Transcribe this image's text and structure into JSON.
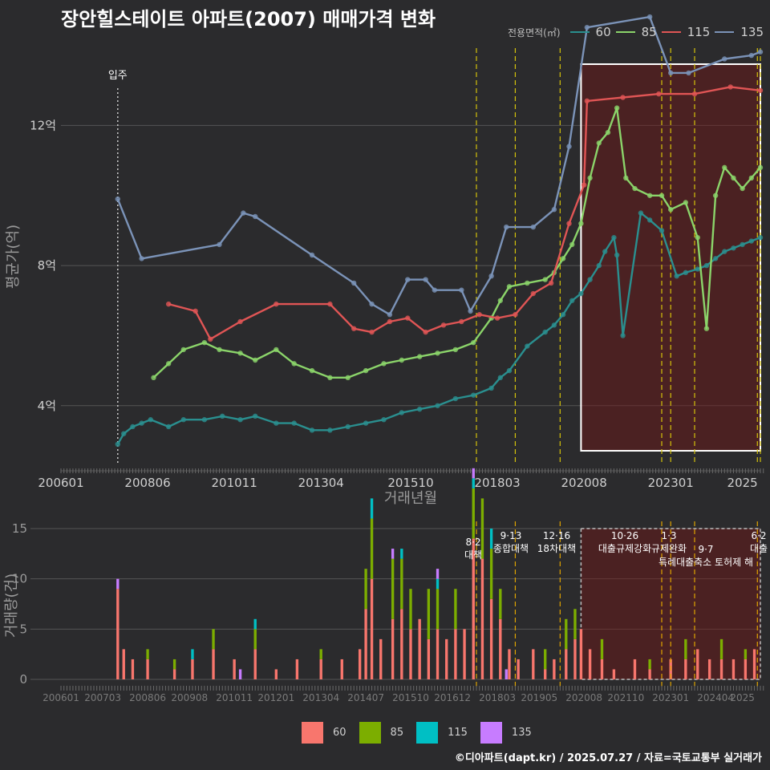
{
  "title": "장안힐스테이트 아파트(2007) 매매가격 변화",
  "footer": "©디아파트(dapt.kr) / 2025.07.27 / 자료=국토교통부 실거래가",
  "legend": {
    "title": "전용면적(㎡)",
    "items": [
      {
        "label": "60",
        "line_color": "#2a8f8f",
        "bar_color": "#f8766d"
      },
      {
        "label": "85",
        "line_color": "#8bd46a",
        "bar_color": "#7cae00"
      },
      {
        "label": "115",
        "line_color": "#e05555",
        "bar_color": "#00bfc4"
      },
      {
        "label": "135",
        "line_color": "#7b93b8",
        "bar_color": "#c77cff"
      }
    ]
  },
  "chart_data": [
    {
      "type": "line",
      "title": "장안힐스테이트 아파트(2007) 매매가격 변화",
      "xlabel": "거래년월",
      "ylabel": "평균가(억)",
      "x_ticks": [
        "200601",
        "200806",
        "201011",
        "201304",
        "201510",
        "201803",
        "202008",
        "202301",
        "2025"
      ],
      "y_ticks": [
        "4억",
        "8억",
        "12억"
      ],
      "y_tick_values": [
        4,
        8,
        12
      ],
      "ylim": [
        2.3,
        14.3
      ],
      "xlim": [
        "2006-01",
        "2025-07"
      ],
      "move_in_label": "입주",
      "move_in_x": "2007-08",
      "policy_lines": [
        "2017-08",
        "2018-09",
        "2019-12",
        "2022-10",
        "2023-01",
        "2023-09",
        "2025-06",
        "2025-07"
      ],
      "highlight_x_range": [
        "2020-07",
        "2025-07"
      ],
      "series": [
        {
          "name": "60",
          "color": "#2a8f8f",
          "x": [
            "2007-08",
            "2007-10",
            "2008-01",
            "2008-04",
            "2008-07",
            "2009-01",
            "2009-06",
            "2010-01",
            "2010-07",
            "2011-01",
            "2011-06",
            "2012-01",
            "2012-07",
            "2013-01",
            "2013-07",
            "2014-01",
            "2014-07",
            "2015-01",
            "2015-07",
            "2016-01",
            "2016-07",
            "2017-01",
            "2017-07",
            "2018-01",
            "2018-04",
            "2018-07",
            "2019-01",
            "2019-07",
            "2019-10",
            "2020-01",
            "2020-04",
            "2020-07",
            "2020-10",
            "2021-01",
            "2021-03",
            "2021-06",
            "2021-07",
            "2021-09",
            "2022-03",
            "2022-06",
            "2022-10",
            "2023-03",
            "2023-06",
            "2023-10",
            "2024-01",
            "2024-04",
            "2024-07",
            "2024-10",
            "2025-01",
            "2025-04",
            "2025-07"
          ],
          "y": [
            2.9,
            3.2,
            3.4,
            3.5,
            3.6,
            3.4,
            3.6,
            3.6,
            3.7,
            3.6,
            3.7,
            3.5,
            3.5,
            3.3,
            3.3,
            3.4,
            3.5,
            3.6,
            3.8,
            3.9,
            4.0,
            4.2,
            4.3,
            4.5,
            4.8,
            5.0,
            5.7,
            6.1,
            6.3,
            6.6,
            7.0,
            7.2,
            7.6,
            8.0,
            8.4,
            8.8,
            8.3,
            6.0,
            9.5,
            9.3,
            9.0,
            7.7,
            7.8,
            7.9,
            8.0,
            8.2,
            8.4,
            8.5,
            8.6,
            8.7,
            8.8
          ]
        },
        {
          "name": "85",
          "color": "#8bd46a",
          "x": [
            "2008-08",
            "2009-01",
            "2009-06",
            "2010-01",
            "2010-06",
            "2011-01",
            "2011-06",
            "2012-01",
            "2012-07",
            "2013-01",
            "2013-07",
            "2014-01",
            "2014-07",
            "2015-01",
            "2015-07",
            "2016-01",
            "2016-07",
            "2017-01",
            "2017-07",
            "2018-01",
            "2018-04",
            "2018-07",
            "2019-01",
            "2019-07",
            "2019-10",
            "2020-01",
            "2020-04",
            "2020-07",
            "2020-10",
            "2021-01",
            "2021-04",
            "2021-07",
            "2021-10",
            "2022-01",
            "2022-06",
            "2022-10",
            "2023-01",
            "2023-06",
            "2023-10",
            "2024-01",
            "2024-04",
            "2024-07",
            "2024-10",
            "2025-01",
            "2025-04",
            "2025-07"
          ],
          "y": [
            4.8,
            5.2,
            5.6,
            5.8,
            5.6,
            5.5,
            5.3,
            5.6,
            5.2,
            5.0,
            4.8,
            4.8,
            5.0,
            5.2,
            5.3,
            5.4,
            5.5,
            5.6,
            5.8,
            6.5,
            7.0,
            7.4,
            7.5,
            7.6,
            7.8,
            8.2,
            8.6,
            9.2,
            10.5,
            11.5,
            11.8,
            12.5,
            10.5,
            10.2,
            10.0,
            10.0,
            9.6,
            9.8,
            8.8,
            6.2,
            10.0,
            10.8,
            10.5,
            10.2,
            10.5,
            10.8
          ]
        },
        {
          "name": "115",
          "color": "#e05555",
          "x": [
            "2009-01",
            "2009-10",
            "2010-03",
            "2011-01",
            "2012-01",
            "2013-07",
            "2014-03",
            "2014-09",
            "2015-03",
            "2015-09",
            "2016-03",
            "2016-09",
            "2017-03",
            "2017-09",
            "2018-03",
            "2018-09",
            "2019-03",
            "2019-09",
            "2020-03",
            "2020-08",
            "2020-09",
            "2021-09",
            "2022-09",
            "2023-09",
            "2024-09",
            "2025-07"
          ],
          "y": [
            6.9,
            6.7,
            5.9,
            6.4,
            6.9,
            6.9,
            6.2,
            6.1,
            6.4,
            6.5,
            6.1,
            6.3,
            6.4,
            6.6,
            6.5,
            6.6,
            7.2,
            7.5,
            9.2,
            10.3,
            12.7,
            12.8,
            12.9,
            12.9,
            13.1,
            13.0
          ]
        },
        {
          "name": "135",
          "color": "#7b93b8",
          "x": [
            "2007-08",
            "2008-04",
            "2010-06",
            "2011-02",
            "2011-06",
            "2013-01",
            "2014-03",
            "2014-09",
            "2015-03",
            "2015-09",
            "2016-03",
            "2016-06",
            "2017-03",
            "2017-06",
            "2018-01",
            "2018-06",
            "2019-03",
            "2019-10",
            "2020-03",
            "2020-09",
            "2022-06",
            "2023-01",
            "2023-07",
            "2024-07",
            "2025-04",
            "2025-07"
          ],
          "y": [
            9.9,
            8.2,
            8.6,
            9.5,
            9.4,
            8.3,
            7.5,
            6.9,
            6.6,
            7.6,
            7.6,
            7.3,
            7.3,
            6.7,
            7.7,
            9.1,
            9.1,
            9.6,
            11.4,
            14.8,
            15.1,
            13.5,
            13.5,
            13.9,
            14.0,
            14.1
          ]
        }
      ]
    },
    {
      "type": "bar",
      "xlabel": "",
      "ylabel": "거래량(건)",
      "x_ticks": [
        "200601",
        "200703",
        "200806",
        "200908",
        "201011",
        "201201",
        "201304",
        "201407",
        "201510",
        "201612",
        "201803",
        "201905",
        "202008",
        "202110",
        "202301",
        "202404",
        "2025"
      ],
      "y_ticks": [
        "0",
        "5",
        "10",
        "15"
      ],
      "y_tick_values": [
        0,
        5,
        10,
        15
      ],
      "ylim": [
        0,
        15
      ],
      "highlight_x_range": [
        "2020-07",
        "2025-07"
      ],
      "annotations": [
        {
          "x": "2017-08",
          "date": "8·2",
          "text": "대책"
        },
        {
          "x": "2018-09",
          "date": "9·13",
          "text": "종합대책"
        },
        {
          "x": "2019-12",
          "date": "12·16",
          "text": "18차대책"
        },
        {
          "x": "2022-10",
          "date": "10·26",
          "text": "대출규제강화"
        },
        {
          "x": "2023-01",
          "date": "1·3",
          "text": "규제완화"
        },
        {
          "x": "2023-09",
          "date": "9·7",
          "text": "특례대출축소 토허제 해"
        },
        {
          "x": "2025-06",
          "date": "6·2",
          "text": "대출"
        }
      ],
      "series": [
        {
          "name": "60",
          "color": "#f8766d",
          "x": [
            "2007-08",
            "2007-10",
            "2008-01",
            "2008-06",
            "2009-03",
            "2009-09",
            "2010-04",
            "2010-11",
            "2011-06",
            "2012-01",
            "2012-08",
            "2013-04",
            "2013-11",
            "2014-05",
            "2014-07",
            "2014-09",
            "2014-12",
            "2015-04",
            "2015-07",
            "2015-10",
            "2016-01",
            "2016-04",
            "2016-07",
            "2016-10",
            "2017-01",
            "2017-04",
            "2017-07",
            "2017-10",
            "2018-01",
            "2018-04",
            "2018-07",
            "2018-10",
            "2019-03",
            "2019-07",
            "2019-10",
            "2020-02",
            "2020-05",
            "2020-07",
            "2020-10",
            "2021-02",
            "2021-06",
            "2022-01",
            "2022-06",
            "2023-01",
            "2023-06",
            "2023-10",
            "2024-02",
            "2024-06",
            "2024-10",
            "2025-02",
            "2025-05"
          ],
          "values": [
            9,
            3,
            2,
            2,
            1,
            2,
            3,
            2,
            3,
            1,
            2,
            2,
            2,
            3,
            7,
            10,
            4,
            6,
            7,
            5,
            6,
            4,
            5,
            4,
            5,
            5,
            14,
            12,
            8,
            6,
            3,
            2,
            3,
            1,
            2,
            3,
            4,
            5,
            3,
            2,
            1,
            2,
            1,
            2,
            2,
            3,
            2,
            2,
            2,
            2,
            3
          ]
        },
        {
          "name": "85",
          "color": "#7cae00",
          "x": [
            "2008-06",
            "2009-03",
            "2010-04",
            "2011-06",
            "2013-04",
            "2014-07",
            "2014-09",
            "2015-04",
            "2015-07",
            "2015-10",
            "2016-04",
            "2016-07",
            "2017-01",
            "2017-07",
            "2017-10",
            "2018-01",
            "2018-04",
            "2019-07",
            "2020-02",
            "2020-05",
            "2021-02",
            "2022-06",
            "2023-06",
            "2024-06",
            "2025-02"
          ],
          "values": [
            1,
            1,
            2,
            2,
            1,
            4,
            6,
            6,
            5,
            4,
            5,
            4,
            4,
            5,
            6,
            5,
            3,
            2,
            3,
            3,
            2,
            1,
            2,
            2,
            1
          ]
        },
        {
          "name": "115",
          "color": "#00bfc4",
          "x": [
            "2009-09",
            "2011-06",
            "2014-09",
            "2015-07",
            "2016-07",
            "2017-07",
            "2018-01"
          ],
          "values": [
            1,
            1,
            2,
            1,
            1,
            1,
            2
          ]
        },
        {
          "name": "135",
          "color": "#c77cff",
          "x": [
            "2007-08",
            "2011-01",
            "2015-04",
            "2016-07",
            "2017-07",
            "2018-06"
          ],
          "values": [
            1,
            1,
            1,
            1,
            1,
            1
          ]
        }
      ]
    }
  ]
}
